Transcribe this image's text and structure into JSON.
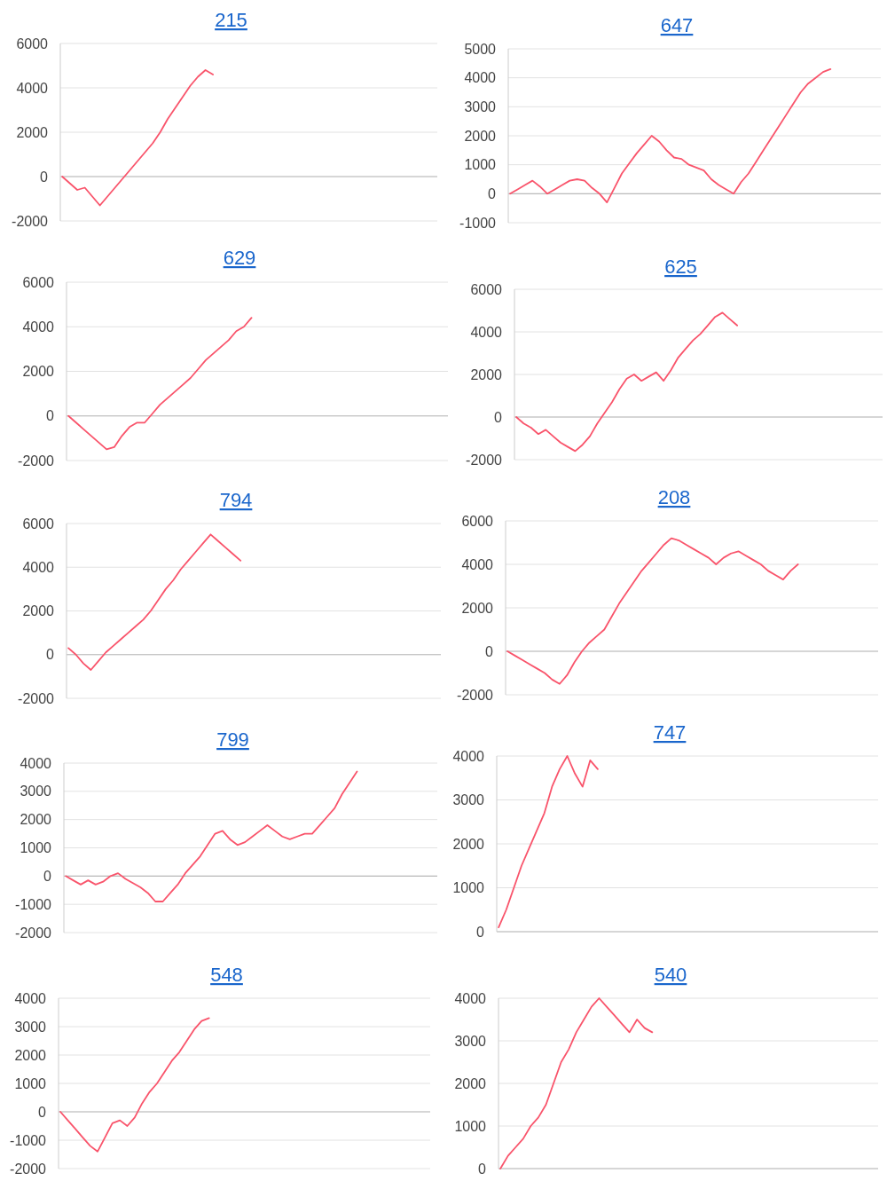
{
  "chart_data": [
    {
      "type": "line",
      "title": "215",
      "categories": [
        null,
        null,
        null,
        null,
        null,
        null,
        null,
        null,
        null,
        null,
        null,
        null,
        null,
        null,
        null,
        null,
        null,
        null,
        null,
        null,
        null,
        null,
        null,
        null,
        null,
        null,
        null,
        null,
        null,
        null,
        null,
        null,
        null,
        null,
        null,
        null,
        null,
        null,
        null,
        null,
        null,
        null,
        null,
        null,
        null,
        null,
        null,
        null,
        null,
        null
      ],
      "series": [
        {
          "color": "#f9546b",
          "values": [
            0,
            -300,
            -600,
            -500,
            -900,
            -1300,
            -900,
            -500,
            -100,
            300,
            700,
            1100,
            1500,
            2000,
            2600,
            3100,
            3600,
            4100,
            4500,
            4800,
            4600,
            null,
            null,
            null,
            null,
            null,
            null,
            null,
            null,
            null,
            null,
            null,
            null,
            null,
            null,
            null,
            null,
            null,
            null,
            null,
            null,
            null,
            null,
            null,
            null,
            null,
            null,
            null,
            null,
            null
          ]
        }
      ],
      "ylim": [
        -2000,
        6000
      ],
      "yticks": [
        -2000,
        0,
        2000,
        4000,
        6000
      ],
      "grid": "y",
      "tick_labels": "y"
    },
    {
      "type": "line",
      "title": "647",
      "categories": [
        null,
        null,
        null,
        null,
        null,
        null,
        null,
        null,
        null,
        null,
        null,
        null,
        null,
        null,
        null,
        null,
        null,
        null,
        null,
        null,
        null,
        null,
        null,
        null,
        null,
        null,
        null,
        null,
        null,
        null,
        null,
        null,
        null,
        null,
        null,
        null,
        null,
        null,
        null,
        null,
        null,
        null,
        null,
        null,
        null,
        null,
        null,
        null,
        null,
        null
      ],
      "series": [
        {
          "color": "#f9546b",
          "values": [
            0,
            150,
            300,
            450,
            250,
            0,
            150,
            300,
            450,
            500,
            450,
            200,
            0,
            -300,
            200,
            700,
            1050,
            1400,
            1700,
            2000,
            1800,
            1500,
            1250,
            1200,
            1000,
            900,
            800,
            500,
            300,
            150,
            0,
            400,
            700,
            1100,
            1500,
            1900,
            2300,
            2700,
            3100,
            3500,
            3800,
            4000,
            4200,
            4300,
            null,
            null,
            null,
            null,
            null,
            null
          ]
        }
      ],
      "ylim": [
        -1000,
        5000
      ],
      "yticks": [
        -1000,
        0,
        1000,
        2000,
        3000,
        4000,
        5000
      ],
      "grid": "y",
      "tick_labels": "y"
    },
    {
      "type": "line",
      "title": "629",
      "categories": [
        null,
        null,
        null,
        null,
        null,
        null,
        null,
        null,
        null,
        null,
        null,
        null,
        null,
        null,
        null,
        null,
        null,
        null,
        null,
        null,
        null,
        null,
        null,
        null,
        null,
        null,
        null,
        null,
        null,
        null,
        null,
        null,
        null,
        null,
        null,
        null,
        null,
        null,
        null,
        null,
        null,
        null,
        null,
        null,
        null,
        null,
        null,
        null,
        null,
        null
      ],
      "series": [
        {
          "color": "#f9546b",
          "values": [
            0,
            -300,
            -600,
            -900,
            -1200,
            -1500,
            -1400,
            -900,
            -500,
            -300,
            -300,
            100,
            500,
            800,
            1100,
            1400,
            1700,
            2100,
            2500,
            2800,
            3100,
            3400,
            3800,
            4000,
            4400,
            null,
            null,
            null,
            null,
            null,
            null,
            null,
            null,
            null,
            null,
            null,
            null,
            null,
            null,
            null,
            null,
            null,
            null,
            null,
            null,
            null,
            null,
            null,
            null,
            null
          ]
        }
      ],
      "ylim": [
        -2000,
        6000
      ],
      "yticks": [
        -2000,
        0,
        2000,
        4000,
        6000
      ],
      "grid": "y",
      "tick_labels": "y"
    },
    {
      "type": "line",
      "title": "625",
      "categories": [
        null,
        null,
        null,
        null,
        null,
        null,
        null,
        null,
        null,
        null,
        null,
        null,
        null,
        null,
        null,
        null,
        null,
        null,
        null,
        null,
        null,
        null,
        null,
        null,
        null,
        null,
        null,
        null,
        null,
        null,
        null,
        null,
        null,
        null,
        null,
        null,
        null,
        null,
        null,
        null,
        null,
        null,
        null,
        null,
        null,
        null,
        null,
        null,
        null,
        null
      ],
      "series": [
        {
          "color": "#f9546b",
          "values": [
            0,
            -300,
            -500,
            -800,
            -600,
            -900,
            -1200,
            -1400,
            -1600,
            -1300,
            -900,
            -300,
            200,
            700,
            1300,
            1800,
            2000,
            1700,
            1900,
            2100,
            1700,
            2200,
            2800,
            3200,
            3600,
            3900,
            4300,
            4700,
            4900,
            4600,
            4300,
            null,
            null,
            null,
            null,
            null,
            null,
            null,
            null,
            null,
            null,
            null,
            null,
            null,
            null,
            null,
            null,
            null,
            null,
            null
          ]
        }
      ],
      "ylim": [
        -2000,
        6000
      ],
      "yticks": [
        -2000,
        0,
        2000,
        4000,
        6000
      ],
      "grid": "y",
      "tick_labels": "y"
    },
    {
      "type": "line",
      "title": "794",
      "categories": [
        null,
        null,
        null,
        null,
        null,
        null,
        null,
        null,
        null,
        null,
        null,
        null,
        null,
        null,
        null,
        null,
        null,
        null,
        null,
        null,
        null,
        null,
        null,
        null,
        null,
        null,
        null,
        null,
        null,
        null,
        null,
        null,
        null,
        null,
        null,
        null,
        null,
        null,
        null,
        null,
        null,
        null,
        null,
        null,
        null,
        null,
        null,
        null,
        null,
        null
      ],
      "series": [
        {
          "color": "#f9546b",
          "values": [
            300,
            0,
            -400,
            -700,
            -300,
            100,
            400,
            700,
            1000,
            1300,
            1600,
            2000,
            2500,
            3000,
            3400,
            3900,
            4300,
            4700,
            5100,
            5500,
            5200,
            4900,
            4600,
            4300,
            null,
            null,
            null,
            null,
            null,
            null,
            null,
            null,
            null,
            null,
            null,
            null,
            null,
            null,
            null,
            null,
            null,
            null,
            null,
            null,
            null,
            null,
            null,
            null,
            null,
            null
          ]
        }
      ],
      "ylim": [
        -2000,
        6000
      ],
      "yticks": [
        -2000,
        0,
        2000,
        4000,
        6000
      ],
      "grid": "y",
      "tick_labels": "y"
    },
    {
      "type": "line",
      "title": "208",
      "categories": [
        null,
        null,
        null,
        null,
        null,
        null,
        null,
        null,
        null,
        null,
        null,
        null,
        null,
        null,
        null,
        null,
        null,
        null,
        null,
        null,
        null,
        null,
        null,
        null,
        null,
        null,
        null,
        null,
        null,
        null,
        null,
        null,
        null,
        null,
        null,
        null,
        null,
        null,
        null,
        null,
        null,
        null,
        null,
        null,
        null,
        null,
        null,
        null,
        null,
        null
      ],
      "series": [
        {
          "color": "#f9546b",
          "values": [
            0,
            -200,
            -400,
            -600,
            -800,
            -1000,
            -1300,
            -1500,
            -1100,
            -500,
            0,
            400,
            700,
            1000,
            1600,
            2200,
            2700,
            3200,
            3700,
            4100,
            4500,
            4900,
            5200,
            5100,
            4900,
            4700,
            4500,
            4300,
            4000,
            4300,
            4500,
            4600,
            4400,
            4200,
            4000,
            3700,
            3500,
            3300,
            3700,
            4000,
            null,
            null,
            null,
            null,
            null,
            null,
            null,
            null,
            null,
            null
          ]
        }
      ],
      "ylim": [
        -2000,
        6000
      ],
      "yticks": [
        -2000,
        0,
        2000,
        4000,
        6000
      ],
      "grid": "y",
      "tick_labels": "y"
    },
    {
      "type": "line",
      "title": "799",
      "categories": [
        null,
        null,
        null,
        null,
        null,
        null,
        null,
        null,
        null,
        null,
        null,
        null,
        null,
        null,
        null,
        null,
        null,
        null,
        null,
        null,
        null,
        null,
        null,
        null,
        null,
        null,
        null,
        null,
        null,
        null,
        null,
        null,
        null,
        null,
        null,
        null,
        null,
        null,
        null,
        null,
        null,
        null,
        null,
        null,
        null,
        null,
        null,
        null,
        null,
        null
      ],
      "series": [
        {
          "color": "#f9546b",
          "values": [
            0,
            -150,
            -300,
            -150,
            -300,
            -200,
            0,
            100,
            -100,
            -250,
            -400,
            -600,
            -900,
            -900,
            -600,
            -300,
            100,
            400,
            700,
            1100,
            1500,
            1600,
            1300,
            1100,
            1200,
            1400,
            1600,
            1800,
            1600,
            1400,
            1300,
            1400,
            1500,
            1500,
            1800,
            2100,
            2400,
            2900,
            3300,
            3700,
            null,
            null,
            null,
            null,
            null,
            null,
            null,
            null,
            null,
            null
          ]
        }
      ],
      "ylim": [
        -2000,
        4000
      ],
      "yticks": [
        -2000,
        -1000,
        0,
        1000,
        2000,
        3000,
        4000
      ],
      "grid": "y",
      "tick_labels": "y"
    },
    {
      "type": "line",
      "title": "747",
      "categories": [
        null,
        null,
        null,
        null,
        null,
        null,
        null,
        null,
        null,
        null,
        null,
        null,
        null,
        null,
        null,
        null,
        null,
        null,
        null,
        null,
        null,
        null,
        null,
        null,
        null,
        null,
        null,
        null,
        null,
        null,
        null,
        null,
        null,
        null,
        null,
        null,
        null,
        null,
        null,
        null,
        null,
        null,
        null,
        null,
        null,
        null,
        null,
        null,
        null,
        null
      ],
      "series": [
        {
          "color": "#f9546b",
          "values": [
            100,
            500,
            1000,
            1500,
            1900,
            2300,
            2700,
            3300,
            3700,
            4000,
            3600,
            3300,
            3900,
            3700,
            null,
            null,
            null,
            null,
            null,
            null,
            null,
            null,
            null,
            null,
            null,
            null,
            null,
            null,
            null,
            null,
            null,
            null,
            null,
            null,
            null,
            null,
            null,
            null,
            null,
            null,
            null,
            null,
            null,
            null,
            null,
            null,
            null,
            null,
            null,
            null
          ]
        }
      ],
      "ylim": [
        0,
        4000
      ],
      "yticks": [
        0,
        1000,
        2000,
        3000,
        4000
      ],
      "grid": "y",
      "tick_labels": "y"
    },
    {
      "type": "line",
      "title": "548",
      "categories": [
        null,
        null,
        null,
        null,
        null,
        null,
        null,
        null,
        null,
        null,
        null,
        null,
        null,
        null,
        null,
        null,
        null,
        null,
        null,
        null,
        null,
        null,
        null,
        null,
        null,
        null,
        null,
        null,
        null,
        null,
        null,
        null,
        null,
        null,
        null,
        null,
        null,
        null,
        null,
        null,
        null,
        null,
        null,
        null,
        null,
        null,
        null,
        null,
        null,
        null
      ],
      "series": [
        {
          "color": "#f9546b",
          "values": [
            0,
            -300,
            -600,
            -900,
            -1200,
            -1400,
            -900,
            -400,
            -300,
            -500,
            -200,
            300,
            700,
            1000,
            1400,
            1800,
            2100,
            2500,
            2900,
            3200,
            3300,
            null,
            null,
            null,
            null,
            null,
            null,
            null,
            null,
            null,
            null,
            null,
            null,
            null,
            null,
            null,
            null,
            null,
            null,
            null,
            null,
            null,
            null,
            null,
            null,
            null,
            null,
            null,
            null,
            null
          ]
        }
      ],
      "ylim": [
        -2000,
        4000
      ],
      "yticks": [
        -2000,
        -1000,
        0,
        1000,
        2000,
        3000,
        4000
      ],
      "grid": "y",
      "tick_labels": "y"
    },
    {
      "type": "line",
      "title": "540",
      "categories": [
        null,
        null,
        null,
        null,
        null,
        null,
        null,
        null,
        null,
        null,
        null,
        null,
        null,
        null,
        null,
        null,
        null,
        null,
        null,
        null,
        null,
        null,
        null,
        null,
        null,
        null,
        null,
        null,
        null,
        null,
        null,
        null,
        null,
        null,
        null,
        null,
        null,
        null,
        null,
        null,
        null,
        null,
        null,
        null,
        null,
        null,
        null,
        null,
        null,
        null
      ],
      "series": [
        {
          "color": "#f9546b",
          "values": [
            0,
            300,
            500,
            700,
            1000,
            1200,
            1500,
            2000,
            2500,
            2800,
            3200,
            3500,
            3800,
            4000,
            3800,
            3600,
            3400,
            3200,
            3500,
            3300,
            3200,
            null,
            null,
            null,
            null,
            null,
            null,
            null,
            null,
            null,
            null,
            null,
            null,
            null,
            null,
            null,
            null,
            null,
            null,
            null,
            null,
            null,
            null,
            null,
            null,
            null,
            null,
            null,
            null,
            null
          ]
        }
      ],
      "ylim": [
        0,
        4000
      ],
      "yticks": [
        0,
        1000,
        2000,
        3000,
        4000
      ],
      "grid": "y",
      "tick_labels": "y"
    }
  ]
}
